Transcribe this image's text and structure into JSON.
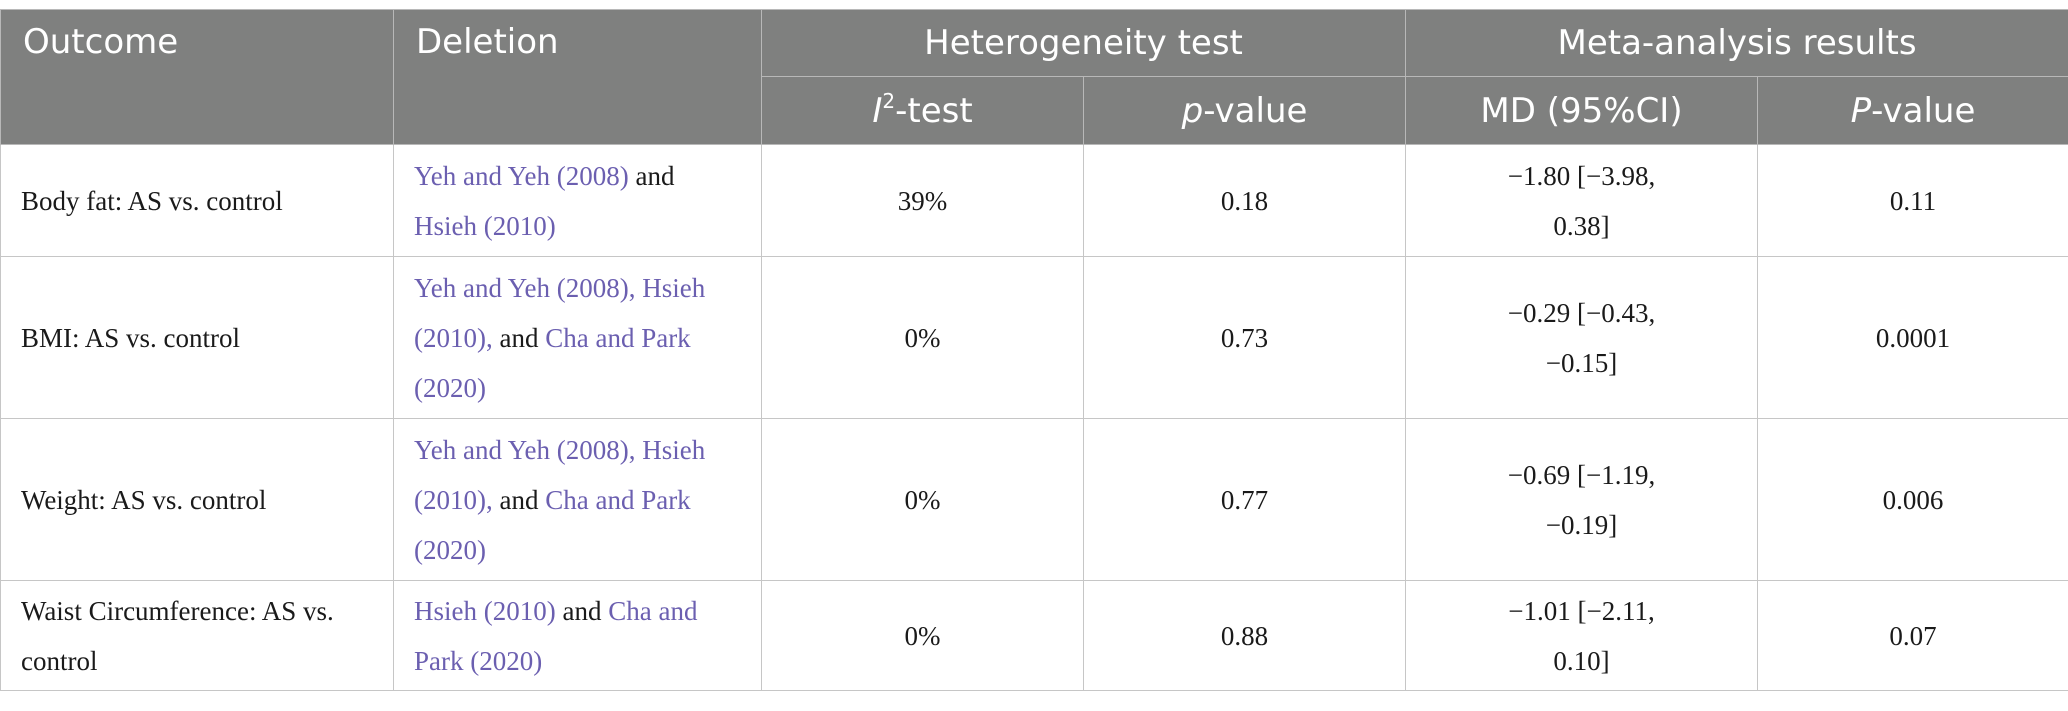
{
  "header": {
    "outcome": "Outcome",
    "deletion": "Deletion",
    "heterogeneity_test": "Heterogeneity test",
    "meta_analysis_results": "Meta-analysis results",
    "i2_letter": "I",
    "i2_sup": "2",
    "i2_suffix": "-test",
    "p_letter": "p",
    "p_suffix": "-value",
    "md_ci": "MD (95%CI)",
    "P_letter": "P",
    "P_suffix": "-value"
  },
  "rows": [
    {
      "outcome": "Body fat: AS vs. control",
      "deletion": [
        {
          "text": "Yeh and Yeh (2008)",
          "link": true
        },
        {
          "text": " and ",
          "link": false
        },
        {
          "text": "Hsieh (2010)",
          "link": true
        }
      ],
      "i2": "39%",
      "p_value": "0.18",
      "md_ci": "−1.80 [−3.98, 0.38]",
      "P_value": "0.11"
    },
    {
      "outcome": "BMI: AS vs. control",
      "deletion": [
        {
          "text": "Yeh and Yeh (2008), Hsieh (2010),",
          "link": true
        },
        {
          "text": " and ",
          "link": false
        },
        {
          "text": "Cha and Park (2020)",
          "link": true
        }
      ],
      "i2": "0%",
      "p_value": "0.73",
      "md_ci": "−0.29 [−0.43, −0.15]",
      "P_value": "0.0001"
    },
    {
      "outcome": "Weight: AS vs. control",
      "deletion": [
        {
          "text": "Yeh and Yeh (2008), Hsieh (2010),",
          "link": true
        },
        {
          "text": " and ",
          "link": false
        },
        {
          "text": "Cha and Park (2020)",
          "link": true
        }
      ],
      "i2": "0%",
      "p_value": "0.77",
      "md_ci": "−0.69 [−1.19, −0.19]",
      "P_value": "0.006"
    },
    {
      "outcome": "Waist Circumference: AS vs. control",
      "deletion": [
        {
          "text": "Hsieh (2010)",
          "link": true
        },
        {
          "text": " and ",
          "link": false
        },
        {
          "text": "Cha and Park (2020)",
          "link": true
        }
      ],
      "i2": "0%",
      "p_value": "0.88",
      "md_ci": "−1.01 [−2.11, 0.10]",
      "P_value": "0.07"
    }
  ],
  "colors": {
    "header_bg": "#7f807f",
    "link": "#6b5fb0"
  }
}
